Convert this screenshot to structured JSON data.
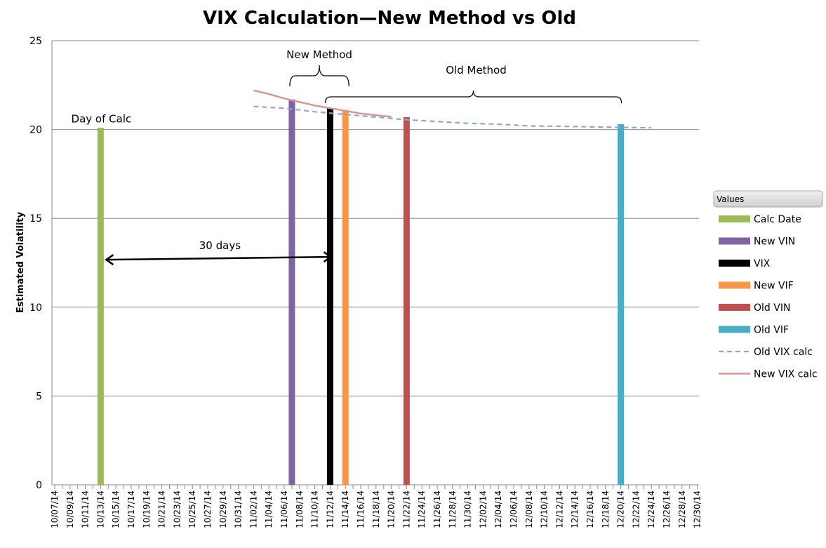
{
  "chart_data": {
    "type": "bar",
    "title": "VIX Calculation—New Method vs Old",
    "xlabel": "",
    "ylabel": "Estimated Volatility",
    "ylim": [
      0,
      25
    ],
    "yticks": [
      0,
      5,
      10,
      15,
      20,
      25
    ],
    "grid": true,
    "categories": [
      "10/07/14",
      "10/09/14",
      "10/11/14",
      "10/13/14",
      "10/15/14",
      "10/17/14",
      "10/19/14",
      "10/21/14",
      "10/23/14",
      "10/25/14",
      "10/27/14",
      "10/29/14",
      "10/31/14",
      "11/02/14",
      "11/04/14",
      "11/06/14",
      "11/08/14",
      "11/10/14",
      "11/12/14",
      "11/14/14",
      "11/16/14",
      "11/18/14",
      "11/20/14",
      "11/22/14",
      "11/24/14",
      "11/26/14",
      "11/28/14",
      "11/30/14",
      "12/02/14",
      "12/04/14",
      "12/06/14",
      "12/08/14",
      "12/10/14",
      "12/12/14",
      "12/14/14",
      "12/16/14",
      "12/18/14",
      "12/20/14",
      "12/22/14",
      "12/24/14",
      "12/26/14",
      "12/28/14",
      "12/30/14"
    ],
    "bars": [
      {
        "name": "Calc Date",
        "date": "10/13/14",
        "value": 20.1,
        "color": "#9BBB59"
      },
      {
        "name": "New VIN",
        "date": "11/07/14",
        "value": 21.7,
        "color": "#8064A2"
      },
      {
        "name": "VIX",
        "date": "11/12/14",
        "value": 21.2,
        "color": "#000000"
      },
      {
        "name": "New VIF",
        "date": "11/14/14",
        "value": 21.1,
        "color": "#F79646"
      },
      {
        "name": "Old VIN",
        "date": "11/22/14",
        "value": 20.7,
        "color": "#C0504D"
      },
      {
        "name": "Old VIF",
        "date": "12/20/14",
        "value": 20.3,
        "color": "#4BACC6"
      }
    ],
    "series": [
      {
        "name": "Old VIX calc",
        "style": "dashed",
        "color": "#8EA9C8",
        "x": [
          "11/02/14",
          "11/06/14",
          "11/10/14",
          "11/14/14",
          "11/18/14",
          "11/22/14",
          "11/26/14",
          "11/30/14",
          "12/04/14",
          "12/08/14",
          "12/12/14",
          "12/16/14",
          "12/20/14",
          "12/24/14"
        ],
        "values": [
          21.3,
          21.2,
          21.0,
          20.85,
          20.7,
          20.55,
          20.45,
          20.35,
          20.3,
          20.2,
          20.18,
          20.15,
          20.12,
          20.1
        ]
      },
      {
        "name": "New VIX calc",
        "style": "solid",
        "color": "#D99694",
        "x": [
          "11/02/14",
          "11/04/14",
          "11/06/14",
          "11/08/14",
          "11/10/14",
          "11/12/14",
          "11/14/14",
          "11/16/14",
          "11/18/14",
          "11/20/14"
        ],
        "values": [
          22.2,
          22.0,
          21.75,
          21.55,
          21.35,
          21.2,
          21.05,
          20.9,
          20.8,
          20.72
        ]
      }
    ],
    "annotations": {
      "day_of_calc": {
        "text": "Day of Calc",
        "date": "10/13/14",
        "y": 20.6
      },
      "days_arrow": {
        "text": "30 days",
        "from": "10/13/14",
        "to": "11/12/14",
        "y": 12.75
      },
      "new_method": {
        "text": "New Method",
        "from": "11/07/14",
        "to": "11/14/14"
      },
      "old_method": {
        "text": "Old Method",
        "from": "11/12/14",
        "to": "12/20/14"
      }
    },
    "legend": {
      "title": "Values",
      "position": "right",
      "items": [
        {
          "name": "Calc Date",
          "type": "bar",
          "color": "#9BBB59"
        },
        {
          "name": "New VIN",
          "type": "bar",
          "color": "#8064A2"
        },
        {
          "name": " VIX",
          "type": "bar",
          "color": "#000000"
        },
        {
          "name": "New VIF",
          "type": "bar",
          "color": "#F79646"
        },
        {
          "name": "Old VIN",
          "type": "bar",
          "color": "#C0504D"
        },
        {
          "name": "Old VIF",
          "type": "bar",
          "color": "#4BACC6"
        },
        {
          "name": "Old VIX calc",
          "type": "dashed",
          "color": "#8EA9C8"
        },
        {
          "name": "New VIX calc",
          "type": "line",
          "color": "#D99694"
        }
      ]
    }
  }
}
